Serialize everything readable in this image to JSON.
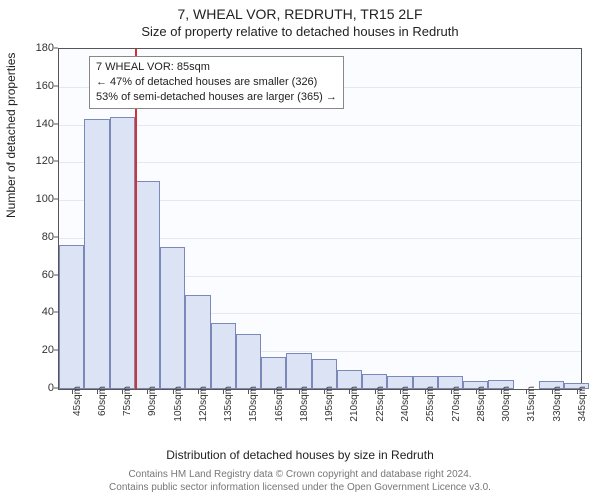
{
  "title": "7, WHEAL VOR, REDRUTH, TR15 2LF",
  "subtitle": "Size of property relative to detached houses in Redruth",
  "ylabel": "Number of detached properties",
  "xlabel": "Distribution of detached houses by size in Redruth",
  "footer_line1": "Contains HM Land Registry data © Crown copyright and database right 2024.",
  "footer_line2": "Contains public sector information licensed under the Open Government Licence v3.0.",
  "chart": {
    "type": "histogram",
    "background_color": "#fbfcff",
    "bar_fill": "#dbe3f5",
    "bar_border": "#7a89b8",
    "grid_color": "#e5e8f0",
    "axis_color": "#555555",
    "ref_line_color": "#d83030",
    "ref_line_x": 85,
    "ylim": [
      0,
      180
    ],
    "ytick_step": 20,
    "xlim": [
      40,
      350
    ],
    "xtick_step": 15,
    "title_fontsize": 14,
    "label_fontsize": 12,
    "tick_fontsize": 11,
    "categories": [
      "45sqm",
      "60sqm",
      "75sqm",
      "90sqm",
      "105sqm",
      "120sqm",
      "135sqm",
      "150sqm",
      "165sqm",
      "180sqm",
      "195sqm",
      "210sqm",
      "225sqm",
      "240sqm",
      "255sqm",
      "270sqm",
      "285sqm",
      "300sqm",
      "315sqm",
      "330sqm",
      "345sqm"
    ],
    "values": [
      76,
      143,
      144,
      110,
      75,
      50,
      35,
      29,
      17,
      19,
      16,
      10,
      8,
      7,
      7,
      7,
      4,
      5,
      0,
      4,
      3
    ]
  },
  "annotation": {
    "line1": "7 WHEAL VOR: 85sqm",
    "line2": "← 47% of detached houses are smaller (326)",
    "line3": "53% of semi-detached houses are larger (365) →"
  }
}
